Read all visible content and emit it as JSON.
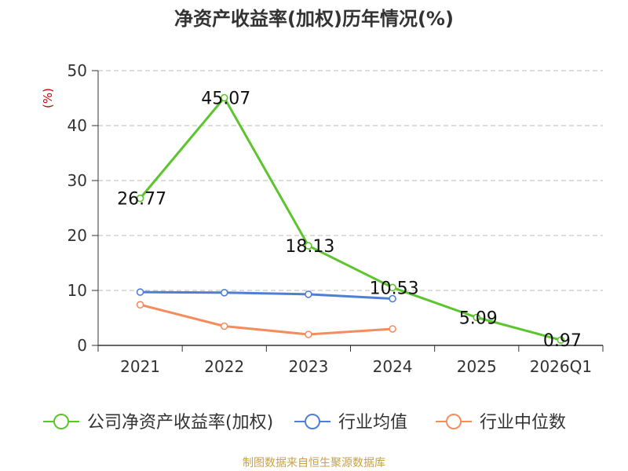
{
  "chart_data": {
    "type": "line",
    "title": "净资产收益率(加权)历年情况(%)",
    "ylabel": "(%)",
    "xlabel": "",
    "ylim": [
      0,
      50
    ],
    "yticks": [
      0,
      10,
      20,
      30,
      40,
      50
    ],
    "grid": true,
    "legend_position": "bottom",
    "categories": [
      "2021",
      "2022",
      "2023",
      "2024",
      "2025",
      "2026Q1"
    ],
    "series": [
      {
        "name": "公司净资产收益率(加权)",
        "color": "#5cc42d",
        "values": [
          26.77,
          45.07,
          18.13,
          10.53,
          5.09,
          0.97
        ],
        "labels": [
          "26.77",
          "45.07",
          "18.13",
          "10.53",
          "5.09",
          "0.97"
        ]
      },
      {
        "name": "行业均值",
        "color": "#4f7fd4",
        "values": [
          9.7,
          9.6,
          9.3,
          8.5,
          null,
          null
        ]
      },
      {
        "name": "行业中位数",
        "color": "#f58c5e",
        "values": [
          7.4,
          3.5,
          2.0,
          3.0,
          null,
          null
        ]
      }
    ]
  },
  "source": "制图数据来自恒生聚源数据库",
  "colors": {
    "axis": "#333333",
    "grid": "#bbbbbb",
    "ylabel": "#cc0000",
    "source": "#c8a04a",
    "title": "#333333"
  }
}
